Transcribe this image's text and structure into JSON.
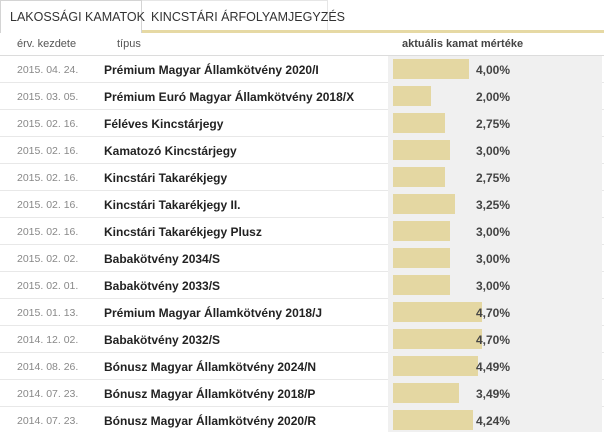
{
  "tabs": [
    {
      "label": "LAKOSSÁGI KAMATOK",
      "active": true
    },
    {
      "label": "KINCSTÁRI ÁRFOLYAMJEGYZÉS",
      "active": false
    }
  ],
  "table": {
    "headers": {
      "date": "érv. kezdete",
      "type": "típus",
      "rate": "aktuális kamat mértéke"
    },
    "bar_color": "#e4d7a2",
    "rows": [
      {
        "date": "2015. 04. 24.",
        "name": "Prémium Magyar Államkötvény 2020/I",
        "rate": "4,00%",
        "value": 4.0
      },
      {
        "date": "2015. 03. 05.",
        "name": "Prémium Euró Magyar Államkötvény 2018/X",
        "rate": "2,00%",
        "value": 2.0
      },
      {
        "date": "2015. 02. 16.",
        "name": "Féléves Kincstárjegy",
        "rate": "2,75%",
        "value": 2.75
      },
      {
        "date": "2015. 02. 16.",
        "name": "Kamatozó Kincstárjegy",
        "rate": "3,00%",
        "value": 3.0
      },
      {
        "date": "2015. 02. 16.",
        "name": "Kincstári Takarékjegy",
        "rate": "2,75%",
        "value": 2.75
      },
      {
        "date": "2015. 02. 16.",
        "name": "Kincstári Takarékjegy II.",
        "rate": "3,25%",
        "value": 3.25
      },
      {
        "date": "2015. 02. 16.",
        "name": "Kincstári Takarékjegy Plusz",
        "rate": "3,00%",
        "value": 3.0
      },
      {
        "date": "2015. 02. 02.",
        "name": "Babakötvény 2034/S",
        "rate": "3,00%",
        "value": 3.0
      },
      {
        "date": "2015. 02. 01.",
        "name": "Babakötvény 2033/S",
        "rate": "3,00%",
        "value": 3.0
      },
      {
        "date": "2015. 01. 13.",
        "name": "Prémium Magyar Államkötvény 2018/J",
        "rate": "4,70%",
        "value": 4.7
      },
      {
        "date": "2014. 12. 02.",
        "name": "Babakötvény 2032/S",
        "rate": "4,70%",
        "value": 4.7
      },
      {
        "date": "2014. 08. 26.",
        "name": "Bónusz Magyar Államkötvény 2024/N",
        "rate": "4,49%",
        "value": 4.49
      },
      {
        "date": "2014. 07. 23.",
        "name": "Bónusz Magyar Államkötvény 2018/P",
        "rate": "3,49%",
        "value": 3.49
      },
      {
        "date": "2014. 07. 23.",
        "name": "Bónusz Magyar Államkötvény 2020/R",
        "rate": "4,24%",
        "value": 4.24
      }
    ]
  }
}
